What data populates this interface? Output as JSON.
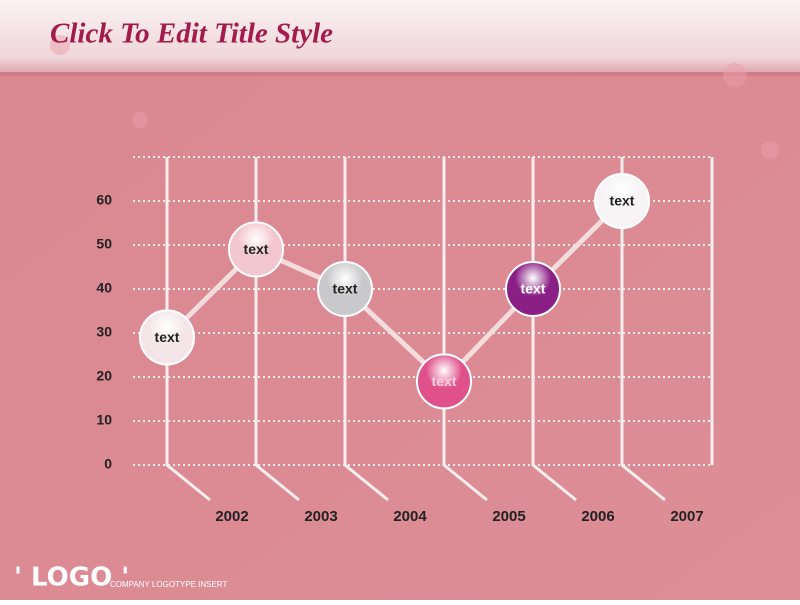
{
  "title": "Click To Edit Title Style",
  "logo": "' LOGO '",
  "logo_tagline": "COMPANY LOGOTYPE INSERT",
  "chart_data": {
    "type": "line",
    "categories": [
      "2002",
      "2003",
      "2004",
      "2005",
      "2006",
      "2007"
    ],
    "values": [
      29,
      49,
      40,
      19,
      40,
      60
    ],
    "point_labels": [
      "text",
      "text",
      "text",
      "text",
      "text",
      "text"
    ],
    "marker_colors": [
      "#f4e6e8",
      "#f2c6cc",
      "#c9c9cb",
      "#e0508a",
      "#8a1f86",
      "#f6f4f4"
    ],
    "label_colors": [
      "#222222",
      "#222222",
      "#222222",
      "#f8d0e0",
      "#ffffff",
      "#222222"
    ],
    "color": "#f2dcdc",
    "ylim": [
      0,
      70
    ],
    "yticks": [
      0,
      10,
      20,
      30,
      40,
      50,
      60
    ],
    "grid": true
  }
}
